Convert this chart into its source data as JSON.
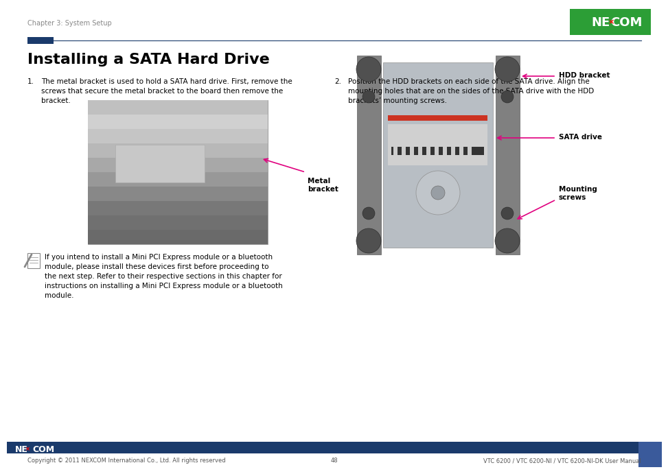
{
  "bg_color": "#ffffff",
  "header_chapter": "Chapter 3: System Setup",
  "header_chapter_color": "#888888",
  "header_chapter_fontsize": 7,
  "divider_color": "#1a3a6b",
  "divider_rect_color": "#1a3a6b",
  "title": "Installing a SATA Hard Drive",
  "title_fontsize": 16,
  "step1_num": "1.",
  "step1_text": "The metal bracket is used to hold a SATA hard drive. First, remove the\nscrews that secure the metal bracket to the board then remove the\nbracket.",
  "step1_fontsize": 7.5,
  "step2_num": "2.",
  "step2_text": "Position the HDD brackets on each side of the SATA drive. Align the\nmounting holes that are on the sides of the SATA drive with the HDD\nbrackets’ mounting screws.",
  "step2_fontsize": 7.5,
  "note_text": "If you intend to install a Mini PCI Express module or a bluetooth\nmodule, please install these devices first before proceeding to\nthe next step. Refer to their respective sections in this chapter for\ninstructions on installing a Mini PCI Express module or a bluetooth\nmodule.",
  "note_fontsize": 7.5,
  "label_metal_bracket": "Metal\nbracket",
  "label_hdd_bracket": "HDD bracket",
  "label_sata_drive": "SATA drive",
  "label_mounting_screws": "Mounting\nscrews",
  "label_color": "#000000",
  "arrow_color": "#e0007f",
  "footer_bg": "#1a3a6b",
  "footer_copyright": "Copyright © 2011 NEXCOM International Co., Ltd. All rights reserved",
  "footer_center": "48",
  "footer_right": "VTC 6200 / VTC 6200-NI / VTC 6200-NI-DK User Manual",
  "footer_fontsize": 6.0,
  "footer_nexcom_fontsize": 9
}
